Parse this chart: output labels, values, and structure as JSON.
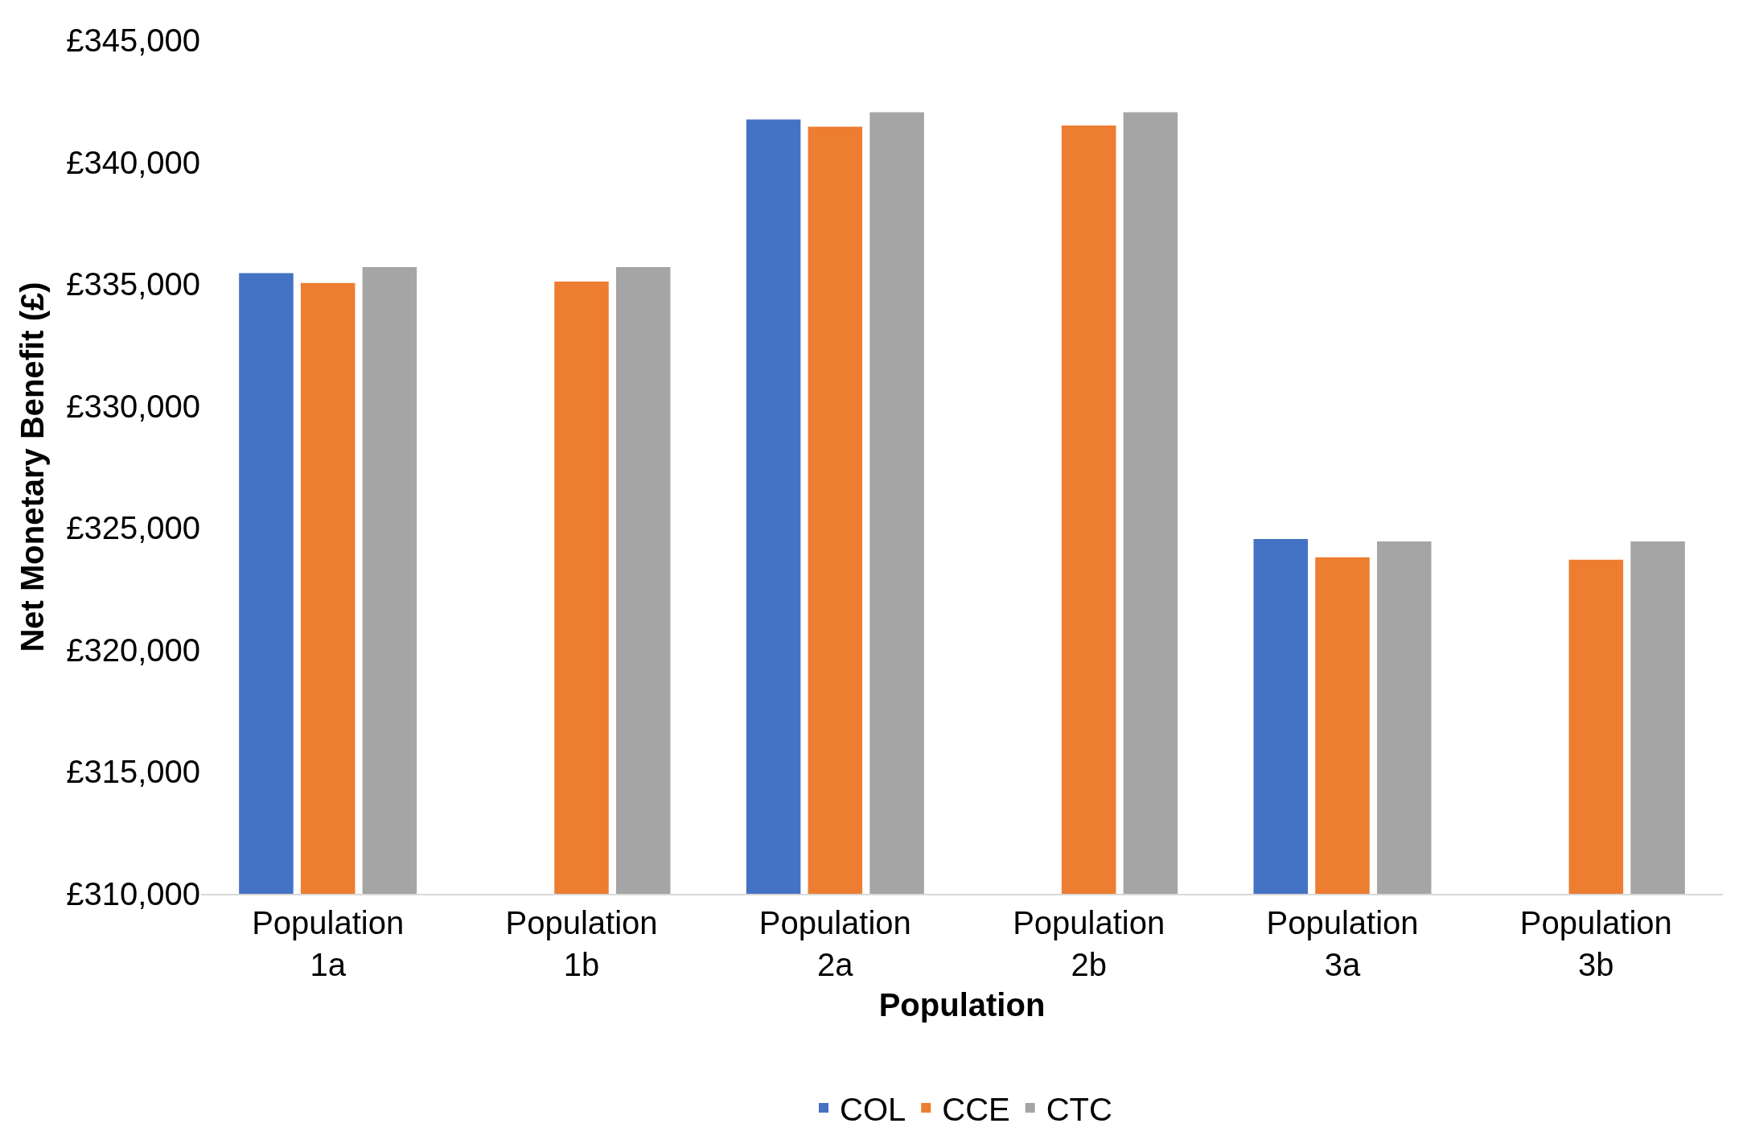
{
  "chart_data": {
    "type": "bar",
    "xlabel": "Population",
    "ylabel": "Net Monetary Benefit (£)",
    "categories": [
      "Population 1a",
      "Population 1b",
      "Population 2a",
      "Population 2b",
      "Population 3a",
      "Population 3b"
    ],
    "series": [
      {
        "name": "COL",
        "color": "#4472c4",
        "values": [
          335450,
          null,
          341750,
          null,
          324550,
          null
        ]
      },
      {
        "name": "CCE",
        "color": "#ed7d31",
        "values": [
          335050,
          335100,
          341450,
          341500,
          323800,
          323700
        ]
      },
      {
        "name": "CTC",
        "color": "#a5a5a5",
        "values": [
          335700,
          335700,
          342050,
          342050,
          324450,
          324450
        ]
      }
    ],
    "ylim": [
      310000,
      345000
    ],
    "yticks": [
      {
        "value": 310000,
        "label": "£310,000"
      },
      {
        "value": 315000,
        "label": "£315,000"
      },
      {
        "value": 320000,
        "label": "£320,000"
      },
      {
        "value": 325000,
        "label": "£325,000"
      },
      {
        "value": 330000,
        "label": "£330,000"
      },
      {
        "value": 335000,
        "label": "£335,000"
      },
      {
        "value": 340000,
        "label": "£340,000"
      },
      {
        "value": 345000,
        "label": "£345,000"
      }
    ],
    "grid": false,
    "legend": "bottom"
  }
}
